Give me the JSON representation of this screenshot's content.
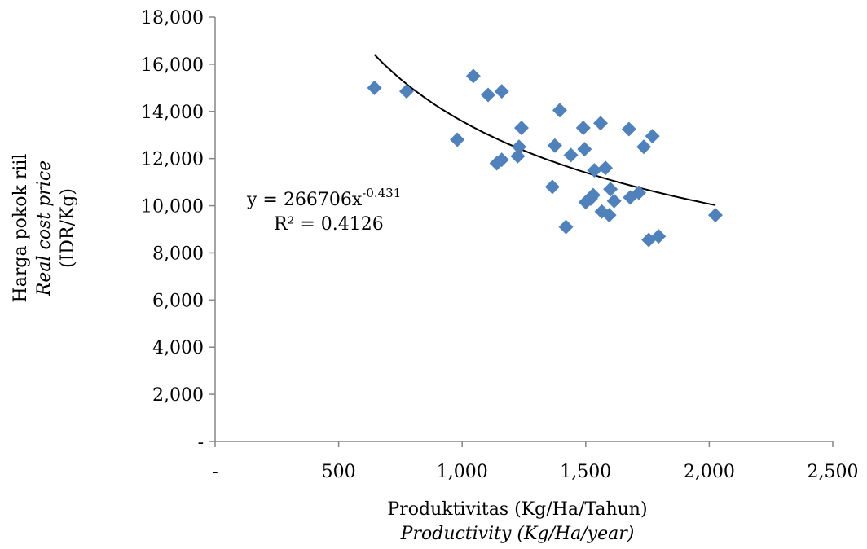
{
  "chart_data": {
    "type": "scatter",
    "title": "",
    "xlabel": "Produktivitas (Kg/Ha/Tahun)",
    "xlabel_en": "Productivity (Kg/Ha/year)",
    "ylabel": "Harga pokok riil",
    "ylabel_en": "Real cost price",
    "ylabel_unit": "(IDR/Kg)",
    "xlim": [
      0,
      2500
    ],
    "ylim": [
      0,
      18000
    ],
    "x_ticks": [
      0,
      500,
      1000,
      1500,
      2000,
      2500
    ],
    "x_tick_labels": [
      "-",
      "500",
      "1,000",
      "1,500",
      "2,000",
      "2,500"
    ],
    "y_ticks": [
      0,
      2000,
      4000,
      6000,
      8000,
      10000,
      12000,
      14000,
      16000,
      18000
    ],
    "y_tick_labels": [
      "-",
      "2,000",
      "4,000",
      "6,000",
      "8,000",
      "10,000",
      "12,000",
      "14,000",
      "16,000",
      "18,000"
    ],
    "grid": false,
    "legend": "none",
    "marker_color": "#4F81BD",
    "trendline_color": "#000000",
    "series": [
      {
        "points": [
          [
            645,
            15000
          ],
          [
            775,
            14850
          ],
          [
            980,
            12800
          ],
          [
            1045,
            15500
          ],
          [
            1105,
            14700
          ],
          [
            1160,
            14850
          ],
          [
            1140,
            11800
          ],
          [
            1160,
            11950
          ],
          [
            1225,
            12100
          ],
          [
            1230,
            12500
          ],
          [
            1240,
            13300
          ],
          [
            1365,
            10800
          ],
          [
            1375,
            12550
          ],
          [
            1395,
            14050
          ],
          [
            1420,
            9100
          ],
          [
            1440,
            12150
          ],
          [
            1490,
            13300
          ],
          [
            1495,
            12400
          ],
          [
            1500,
            10150
          ],
          [
            1520,
            10300
          ],
          [
            1530,
            10450
          ],
          [
            1535,
            11500
          ],
          [
            1560,
            13500
          ],
          [
            1565,
            9750
          ],
          [
            1580,
            11600
          ],
          [
            1595,
            9600
          ],
          [
            1600,
            10700
          ],
          [
            1615,
            10200
          ],
          [
            1675,
            13250
          ],
          [
            1680,
            10350
          ],
          [
            1715,
            10550
          ],
          [
            1735,
            12500
          ],
          [
            1755,
            8550
          ],
          [
            1770,
            12950
          ],
          [
            1795,
            8700
          ],
          [
            2025,
            9600
          ]
        ]
      }
    ],
    "trendline": {
      "type": "power",
      "a": 266706,
      "b": -0.431,
      "x_range": [
        645,
        2025
      ]
    },
    "annotation": {
      "equation_base": "y = 266706x",
      "equation_exponent": "-0.431",
      "r_squared": "R² = 0.4126"
    }
  }
}
